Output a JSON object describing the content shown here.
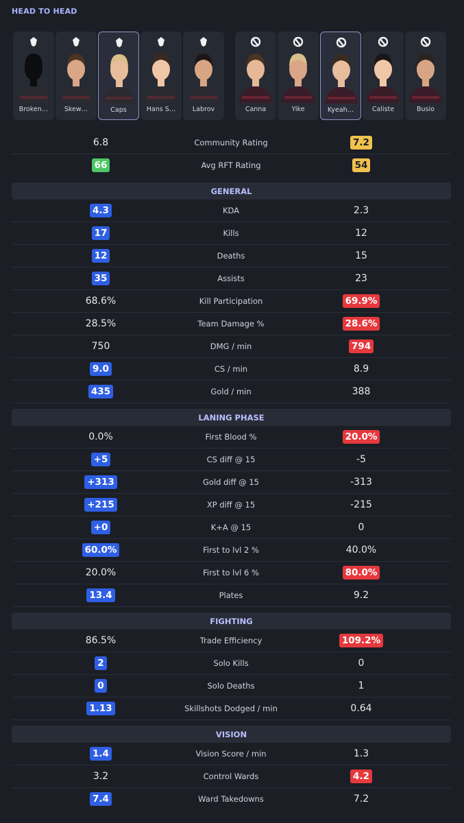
{
  "header": {
    "title": "HEAD TO HEAD"
  },
  "teams": [
    {
      "players": [
        "Broken…",
        "Skew…",
        "Caps",
        "Hans S…",
        "Labrov"
      ],
      "selected": 2
    },
    {
      "players": [
        "Canna",
        "Yike",
        "Kyeah…",
        "Caliste",
        "Busio"
      ],
      "selected": 2
    }
  ],
  "summary": [
    {
      "left": "6.8",
      "label": "Community Rating",
      "right": "7.2",
      "badges": {
        "right": "#f2c14e"
      }
    },
    {
      "left": "66",
      "label": "Avg RFT Rating",
      "right": "54",
      "badges": {
        "left": "#4cc764",
        "right": "#f2c14e"
      }
    }
  ],
  "sections": [
    {
      "title": "GENERAL",
      "rows": [
        {
          "left": "4.3",
          "label": "KDA",
          "right": "2.3",
          "badges": {
            "left": "#2f5fe4"
          }
        },
        {
          "left": "17",
          "label": "Kills",
          "right": "12",
          "badges": {
            "left": "#2f5fe4"
          }
        },
        {
          "left": "12",
          "label": "Deaths",
          "right": "15",
          "badges": {
            "left": "#2f5fe4"
          }
        },
        {
          "left": "35",
          "label": "Assists",
          "right": "23",
          "badges": {
            "left": "#2f5fe4"
          }
        },
        {
          "left": "68.6%",
          "label": "Kill Participation",
          "right": "69.9%",
          "badges": {
            "right": "#e5393d"
          }
        },
        {
          "left": "28.5%",
          "label": "Team Damage %",
          "right": "28.6%",
          "badges": {
            "right": "#e5393d"
          }
        },
        {
          "left": "750",
          "label": "DMG / min",
          "right": "794",
          "badges": {
            "right": "#e5393d"
          }
        },
        {
          "left": "9.0",
          "label": "CS / min",
          "right": "8.9",
          "badges": {
            "left": "#2f5fe4"
          }
        },
        {
          "left": "435",
          "label": "Gold / min",
          "right": "388",
          "badges": {
            "left": "#2f5fe4"
          }
        }
      ]
    },
    {
      "title": "LANING PHASE",
      "rows": [
        {
          "left": "0.0%",
          "label": "First Blood %",
          "right": "20.0%",
          "badges": {
            "right": "#e5393d"
          }
        },
        {
          "left": "+5",
          "label": "CS diff @ 15",
          "right": "-5",
          "badges": {
            "left": "#2f5fe4"
          }
        },
        {
          "left": "+313",
          "label": "Gold diff @ 15",
          "right": "-313",
          "badges": {
            "left": "#2f5fe4"
          }
        },
        {
          "left": "+215",
          "label": "XP diff @ 15",
          "right": "-215",
          "badges": {
            "left": "#2f5fe4"
          }
        },
        {
          "left": "+0",
          "label": "K+A @ 15",
          "right": "0",
          "badges": {
            "left": "#2f5fe4"
          }
        },
        {
          "left": "60.0%",
          "label": "First to lvl 2 %",
          "right": "40.0%",
          "badges": {
            "left": "#2f5fe4"
          }
        },
        {
          "left": "20.0%",
          "label": "First to lvl 6 %",
          "right": "80.0%",
          "badges": {
            "right": "#e5393d"
          }
        },
        {
          "left": "13.4",
          "label": "Plates",
          "right": "9.2",
          "badges": {
            "left": "#2f5fe4"
          }
        }
      ]
    },
    {
      "title": "FIGHTING",
      "rows": [
        {
          "left": "86.5%",
          "label": "Trade Efficiency",
          "right": "109.2%",
          "badges": {
            "right": "#e5393d"
          }
        },
        {
          "left": "2",
          "label": "Solo Kills",
          "right": "0",
          "badges": {
            "left": "#2f5fe4"
          }
        },
        {
          "left": "0",
          "label": "Solo Deaths",
          "right": "1",
          "badges": {
            "left": "#2f5fe4"
          }
        },
        {
          "left": "1.13",
          "label": "Skillshots Dodged / min",
          "right": "0.64",
          "badges": {
            "left": "#2f5fe4"
          }
        }
      ]
    },
    {
      "title": "VISION",
      "rows": [
        {
          "left": "1.4",
          "label": "Vision Score / min",
          "right": "1.3",
          "badges": {
            "left": "#2f5fe4"
          }
        },
        {
          "left": "3.2",
          "label": "Control Wards",
          "right": "4.2",
          "badges": {
            "right": "#e5393d"
          }
        },
        {
          "left": "7.4",
          "label": "Ward Takedowns",
          "right": "7.2",
          "badges": {
            "left": "#2f5fe4"
          }
        }
      ]
    }
  ]
}
